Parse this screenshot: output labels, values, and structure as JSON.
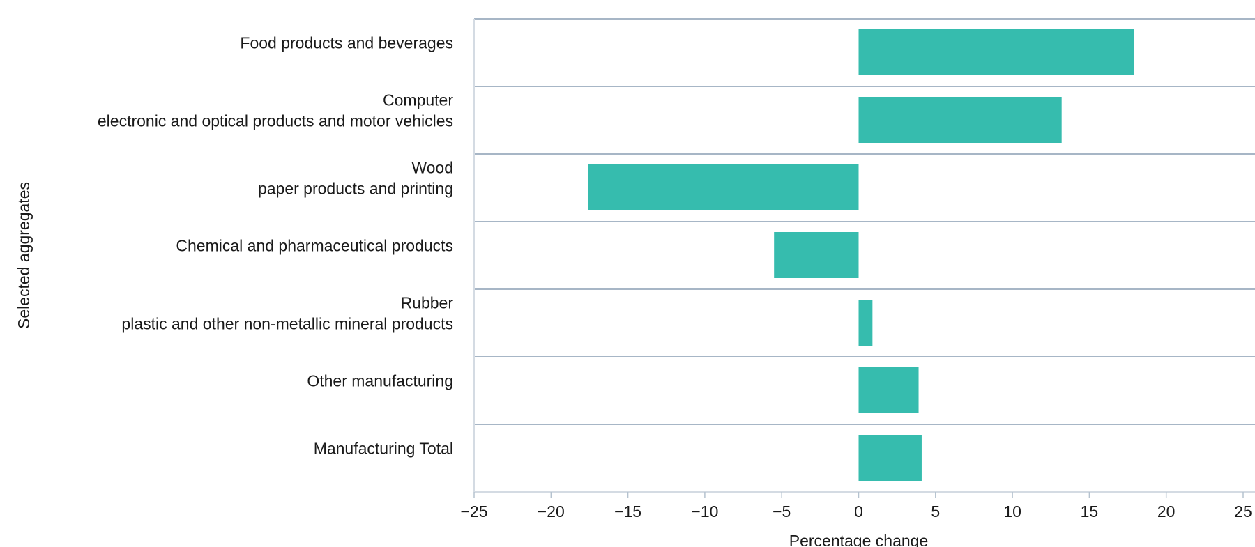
{
  "chart_data": {
    "type": "bar",
    "orientation": "horizontal",
    "categories": [
      [
        "Food products and beverages"
      ],
      [
        "Computer",
        "electronic and optical products and motor vehicles"
      ],
      [
        "Wood",
        "paper products and printing"
      ],
      [
        "Chemical and pharmaceutical products"
      ],
      [
        "Rubber",
        "plastic and other non-metallic mineral products"
      ],
      [
        "Other manufacturing"
      ],
      [
        "Manufacturing Total"
      ]
    ],
    "values": [
      17.9,
      13.2,
      -17.6,
      -5.5,
      0.9,
      3.9,
      4.1
    ],
    "xlabel": "Percentage change",
    "ylabel": "Selected aggregates",
    "xlim": [
      -25,
      25
    ],
    "xticks": [
      -25,
      -20,
      -15,
      -10,
      -5,
      0,
      5,
      10,
      15,
      20,
      25
    ],
    "tick_labels": [
      "−25",
      "−20",
      "−15",
      "−10",
      "−5",
      "0",
      "5",
      "10",
      "15",
      "20",
      "25"
    ],
    "bar_color": "#36bcae",
    "row_line_color": "#a7b6c6",
    "grid": false,
    "legend": false
  }
}
